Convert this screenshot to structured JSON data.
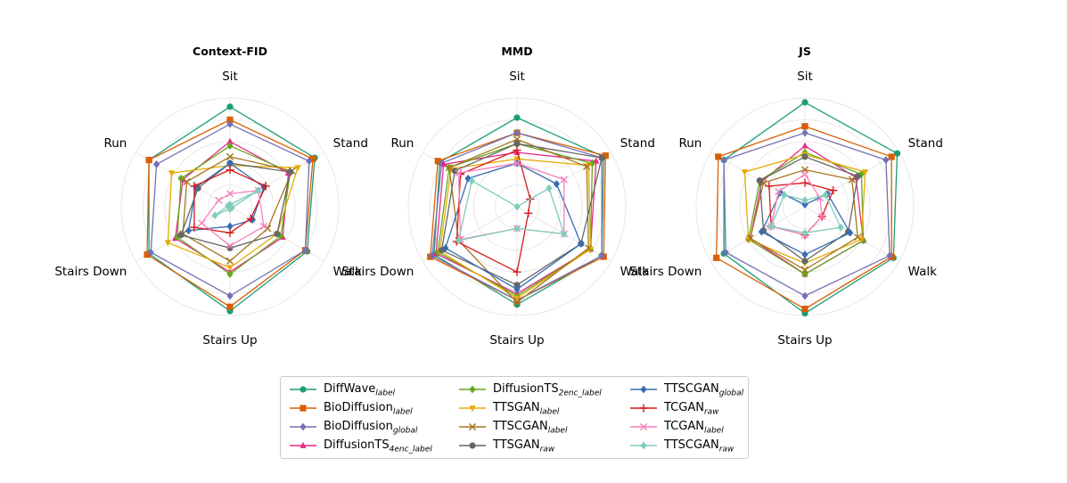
{
  "chart_data": [
    {
      "type": "radar",
      "title": "Context-FID",
      "axes": [
        "Sit",
        "Stand",
        "Walk",
        "Stairs Up",
        "Stairs Down",
        "Run"
      ],
      "rlim": [
        0,
        1
      ],
      "grid": true,
      "series": [
        {
          "name": "DiffWave_label",
          "values": [
            0.92,
            0.9,
            0.82,
            0.96,
            0.86,
            0.86
          ]
        },
        {
          "name": "BioDiffusion_label",
          "values": [
            0.8,
            0.88,
            0.8,
            0.92,
            0.88,
            0.86
          ]
        },
        {
          "name": "BioDiffusion_global",
          "values": [
            0.76,
            0.84,
            0.8,
            0.82,
            0.84,
            0.78
          ]
        },
        {
          "name": "DiffusionTS_4enc_label",
          "values": [
            0.6,
            0.62,
            0.56,
            0.6,
            0.58,
            0.5
          ]
        },
        {
          "name": "DiffusionTS_2enc_label",
          "values": [
            0.56,
            0.64,
            0.54,
            0.62,
            0.56,
            0.52
          ]
        },
        {
          "name": "TTSGAN_label",
          "values": [
            0.38,
            0.72,
            0.5,
            0.56,
            0.66,
            0.62
          ]
        },
        {
          "name": "TTSCGAN_label",
          "values": [
            0.46,
            0.66,
            0.4,
            0.5,
            0.5,
            0.46
          ]
        },
        {
          "name": "TTSGAN_raw",
          "values": [
            0.4,
            0.64,
            0.5,
            0.38,
            0.52,
            0.34
          ]
        },
        {
          "name": "TTSCGAN_global",
          "values": [
            0.4,
            0.36,
            0.24,
            0.18,
            0.44,
            0.36
          ]
        },
        {
          "name": "TCGAN_raw",
          "values": [
            0.34,
            0.38,
            0.22,
            0.24,
            0.38,
            0.38
          ]
        },
        {
          "name": "TCGAN_label",
          "values": [
            0.12,
            0.3,
            0.36,
            0.36,
            0.3,
            0.12
          ]
        },
        {
          "name": "TTSCGAN_raw",
          "values": [
            0.02,
            0.3,
            0.02,
            0.02,
            0.16,
            0.02
          ]
        }
      ]
    },
    {
      "type": "radar",
      "title": "MMD",
      "axes": [
        "Sit",
        "Stand",
        "Walk",
        "Stairs Up",
        "Stairs Down",
        "Run"
      ],
      "rlim": [
        0,
        1
      ],
      "grid": true,
      "series": [
        {
          "name": "DiffWave_label",
          "values": [
            0.82,
            0.92,
            0.9,
            0.9,
            0.88,
            0.82
          ]
        },
        {
          "name": "BioDiffusion_label",
          "values": [
            0.68,
            0.94,
            0.92,
            0.86,
            0.92,
            0.84
          ]
        },
        {
          "name": "BioDiffusion_global",
          "values": [
            0.68,
            0.9,
            0.9,
            0.86,
            0.9,
            0.8
          ]
        },
        {
          "name": "DiffusionTS_4enc_label",
          "values": [
            0.5,
            0.84,
            0.78,
            0.8,
            0.86,
            0.78
          ]
        },
        {
          "name": "DiffusionTS_2enc_label",
          "values": [
            0.58,
            0.8,
            0.78,
            0.82,
            0.84,
            0.72
          ]
        },
        {
          "name": "TTSGAN_label",
          "values": [
            0.44,
            0.76,
            0.78,
            0.84,
            0.82,
            0.7
          ]
        },
        {
          "name": "TTSCGAN_label",
          "values": [
            0.62,
            0.74,
            0.76,
            0.88,
            0.62,
            0.72
          ]
        },
        {
          "name": "TTSGAN_raw",
          "values": [
            0.58,
            0.9,
            0.68,
            0.72,
            0.8,
            0.66
          ]
        },
        {
          "name": "TTSCGAN_global",
          "values": [
            0.4,
            0.42,
            0.68,
            0.76,
            0.76,
            0.52
          ]
        },
        {
          "name": "TCGAN_raw",
          "values": [
            0.52,
            0.14,
            0.12,
            0.6,
            0.64,
            0.6
          ]
        },
        {
          "name": "TCGAN_label",
          "values": [
            0.4,
            0.5,
            0.5,
            0.2,
            0.6,
            0.62
          ]
        },
        {
          "name": "TTSCGAN_raw",
          "values": [
            0.0,
            0.34,
            0.5,
            0.2,
            0.62,
            0.48
          ]
        }
      ]
    },
    {
      "type": "radar",
      "title": "JS",
      "axes": [
        "Sit",
        "Stand",
        "Walk",
        "Stairs Up",
        "Stairs Down",
        "Run"
      ],
      "rlim": [
        0,
        1
      ],
      "grid": true,
      "series": [
        {
          "name": "DiffWave_label",
          "values": [
            0.96,
            0.98,
            0.94,
            0.98,
            0.86,
            0.86
          ]
        },
        {
          "name": "BioDiffusion_label",
          "values": [
            0.74,
            0.92,
            0.92,
            0.94,
            0.94,
            0.92
          ]
        },
        {
          "name": "BioDiffusion_global",
          "values": [
            0.68,
            0.86,
            0.9,
            0.82,
            0.84,
            0.86
          ]
        },
        {
          "name": "DiffusionTS_4enc_label",
          "values": [
            0.56,
            0.54,
            0.62,
            0.62,
            0.58,
            0.46
          ]
        },
        {
          "name": "DiffusionTS_2enc_label",
          "values": [
            0.5,
            0.6,
            0.62,
            0.62,
            0.6,
            0.48
          ]
        },
        {
          "name": "TTSGAN_label",
          "values": [
            0.48,
            0.64,
            0.6,
            0.52,
            0.6,
            0.64
          ]
        },
        {
          "name": "TTSCGAN_label",
          "values": [
            0.34,
            0.5,
            0.56,
            0.58,
            0.58,
            0.44
          ]
        },
        {
          "name": "TTSGAN_raw",
          "values": [
            0.46,
            0.56,
            0.46,
            0.5,
            0.44,
            0.48
          ]
        },
        {
          "name": "TTSCGAN_global",
          "values": [
            0.02,
            0.24,
            0.48,
            0.44,
            0.46,
            0.26
          ]
        },
        {
          "name": "TCGAN_raw",
          "values": [
            0.22,
            0.3,
            0.18,
            0.26,
            0.36,
            0.38
          ]
        },
        {
          "name": "TCGAN_label",
          "values": [
            0.3,
            0.16,
            0.18,
            0.26,
            0.36,
            0.28
          ]
        },
        {
          "name": "TTSCGAN_raw",
          "values": [
            0.06,
            0.22,
            0.38,
            0.24,
            0.36,
            0.22
          ]
        }
      ]
    }
  ],
  "legend": {
    "items": [
      {
        "base": "DiffWave",
        "sub": "label",
        "color": "#1b9e77",
        "marker": "circle"
      },
      {
        "base": "BioDiffusion",
        "sub": "label",
        "color": "#d95f02",
        "marker": "square"
      },
      {
        "base": "BioDiffusion",
        "sub": "global",
        "color": "#7570b3",
        "marker": "diamond"
      },
      {
        "base": "DiffusionTS",
        "sub": "4enc_label",
        "color": "#e7298a",
        "marker": "triangle"
      },
      {
        "base": "DiffusionTS",
        "sub": "2enc_label",
        "color": "#66a61e",
        "marker": "diamond"
      },
      {
        "base": "TTSGAN",
        "sub": "label",
        "color": "#e6ab02",
        "marker": "triangle-down"
      },
      {
        "base": "TTSCGAN",
        "sub": "label",
        "color": "#a6761d",
        "marker": "x"
      },
      {
        "base": "TTSGAN",
        "sub": "raw",
        "color": "#666666",
        "marker": "circle"
      },
      {
        "base": "TTSCGAN",
        "sub": "global",
        "color": "#386cb0",
        "marker": "diamond"
      },
      {
        "base": "TCGAN",
        "sub": "raw",
        "color": "#d7191c",
        "marker": "plus"
      },
      {
        "base": "TCGAN",
        "sub": "label",
        "color": "#f781bf",
        "marker": "x"
      },
      {
        "base": "TTSCGAN",
        "sub": "raw",
        "color": "#7fcdbb",
        "marker": "diamond"
      }
    ]
  }
}
